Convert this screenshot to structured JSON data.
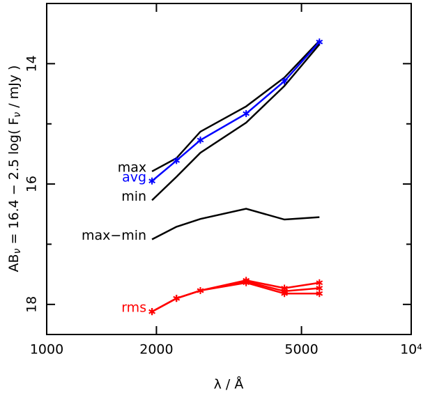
{
  "chart_data": {
    "type": "line",
    "ylabel": [
      "AB",
      "ν",
      " = 16.4 − 2.5 log( F",
      "ν",
      " / mJy )"
    ],
    "xlabel": "λ / Å",
    "x": [
      1945,
      2270,
      2640,
      3525,
      4490,
      5600
    ],
    "xlog": true,
    "xlim": [
      1000,
      10000
    ],
    "xticks": [
      1000,
      2000,
      5000,
      {
        "value": 10000,
        "label": "10⁴"
      }
    ],
    "ylim": [
      18.5,
      13
    ],
    "yticks": [
      14,
      16,
      18
    ],
    "yminor": [
      15,
      17
    ],
    "series": [
      {
        "name": "max",
        "color": "#000000",
        "values": [
          15.79,
          15.57,
          15.13,
          14.71,
          14.23,
          13.62
        ]
      },
      {
        "name": "avg",
        "color": "#0000ff",
        "markers": true,
        "values": [
          15.95,
          15.61,
          15.27,
          14.83,
          14.29,
          13.64
        ]
      },
      {
        "name": "min",
        "color": "#000000",
        "values": [
          16.27,
          15.88,
          15.48,
          14.98,
          14.37,
          13.68
        ]
      },
      {
        "name": "max−min",
        "color": "#000000",
        "values": [
          16.92,
          16.71,
          16.58,
          16.41,
          16.59,
          16.55
        ]
      },
      {
        "name": "rms",
        "color": "#ff0000",
        "markers": true,
        "values": [
          18.12,
          17.9,
          17.77,
          17.6,
          17.73,
          17.64
        ]
      },
      {
        "color": "#ff0000",
        "markers": true,
        "values": [
          18.12,
          17.9,
          17.77,
          17.62,
          17.78,
          17.73
        ]
      },
      {
        "color": "#ff0000",
        "markers": true,
        "values": [
          18.12,
          17.9,
          17.77,
          17.64,
          17.82,
          17.82
        ]
      }
    ]
  }
}
